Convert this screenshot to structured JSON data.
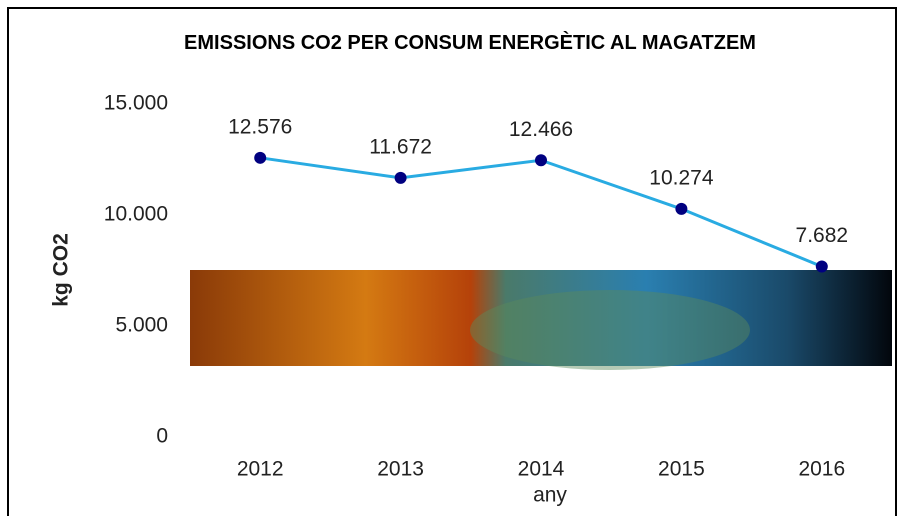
{
  "chart_data": {
    "type": "line",
    "title": "EMISSIONS CO2 PER CONSUM ENERGÈTIC AL MAGATZEM",
    "x_label": "any",
    "y_label": "kg CO2",
    "categories": [
      "2012",
      "2013",
      "2014",
      "2015",
      "2016"
    ],
    "series": [
      {
        "name": "kg CO2",
        "color": "#29abe2",
        "marker_color": "#000080",
        "values": [
          12576,
          11672,
          12466,
          10274,
          7682
        ],
        "value_labels": [
          "12.576",
          "11.672",
          "12.466",
          "10.274",
          "7.682"
        ]
      }
    ],
    "ylim": [
      0,
      15000
    ],
    "yticks": [
      0,
      {
        "value": 5000,
        "label": "5.000"
      },
      {
        "value": 10000,
        "label": "10.000"
      },
      {
        "value": 15000,
        "label": "15.000"
      }
    ],
    "grid": false
  }
}
